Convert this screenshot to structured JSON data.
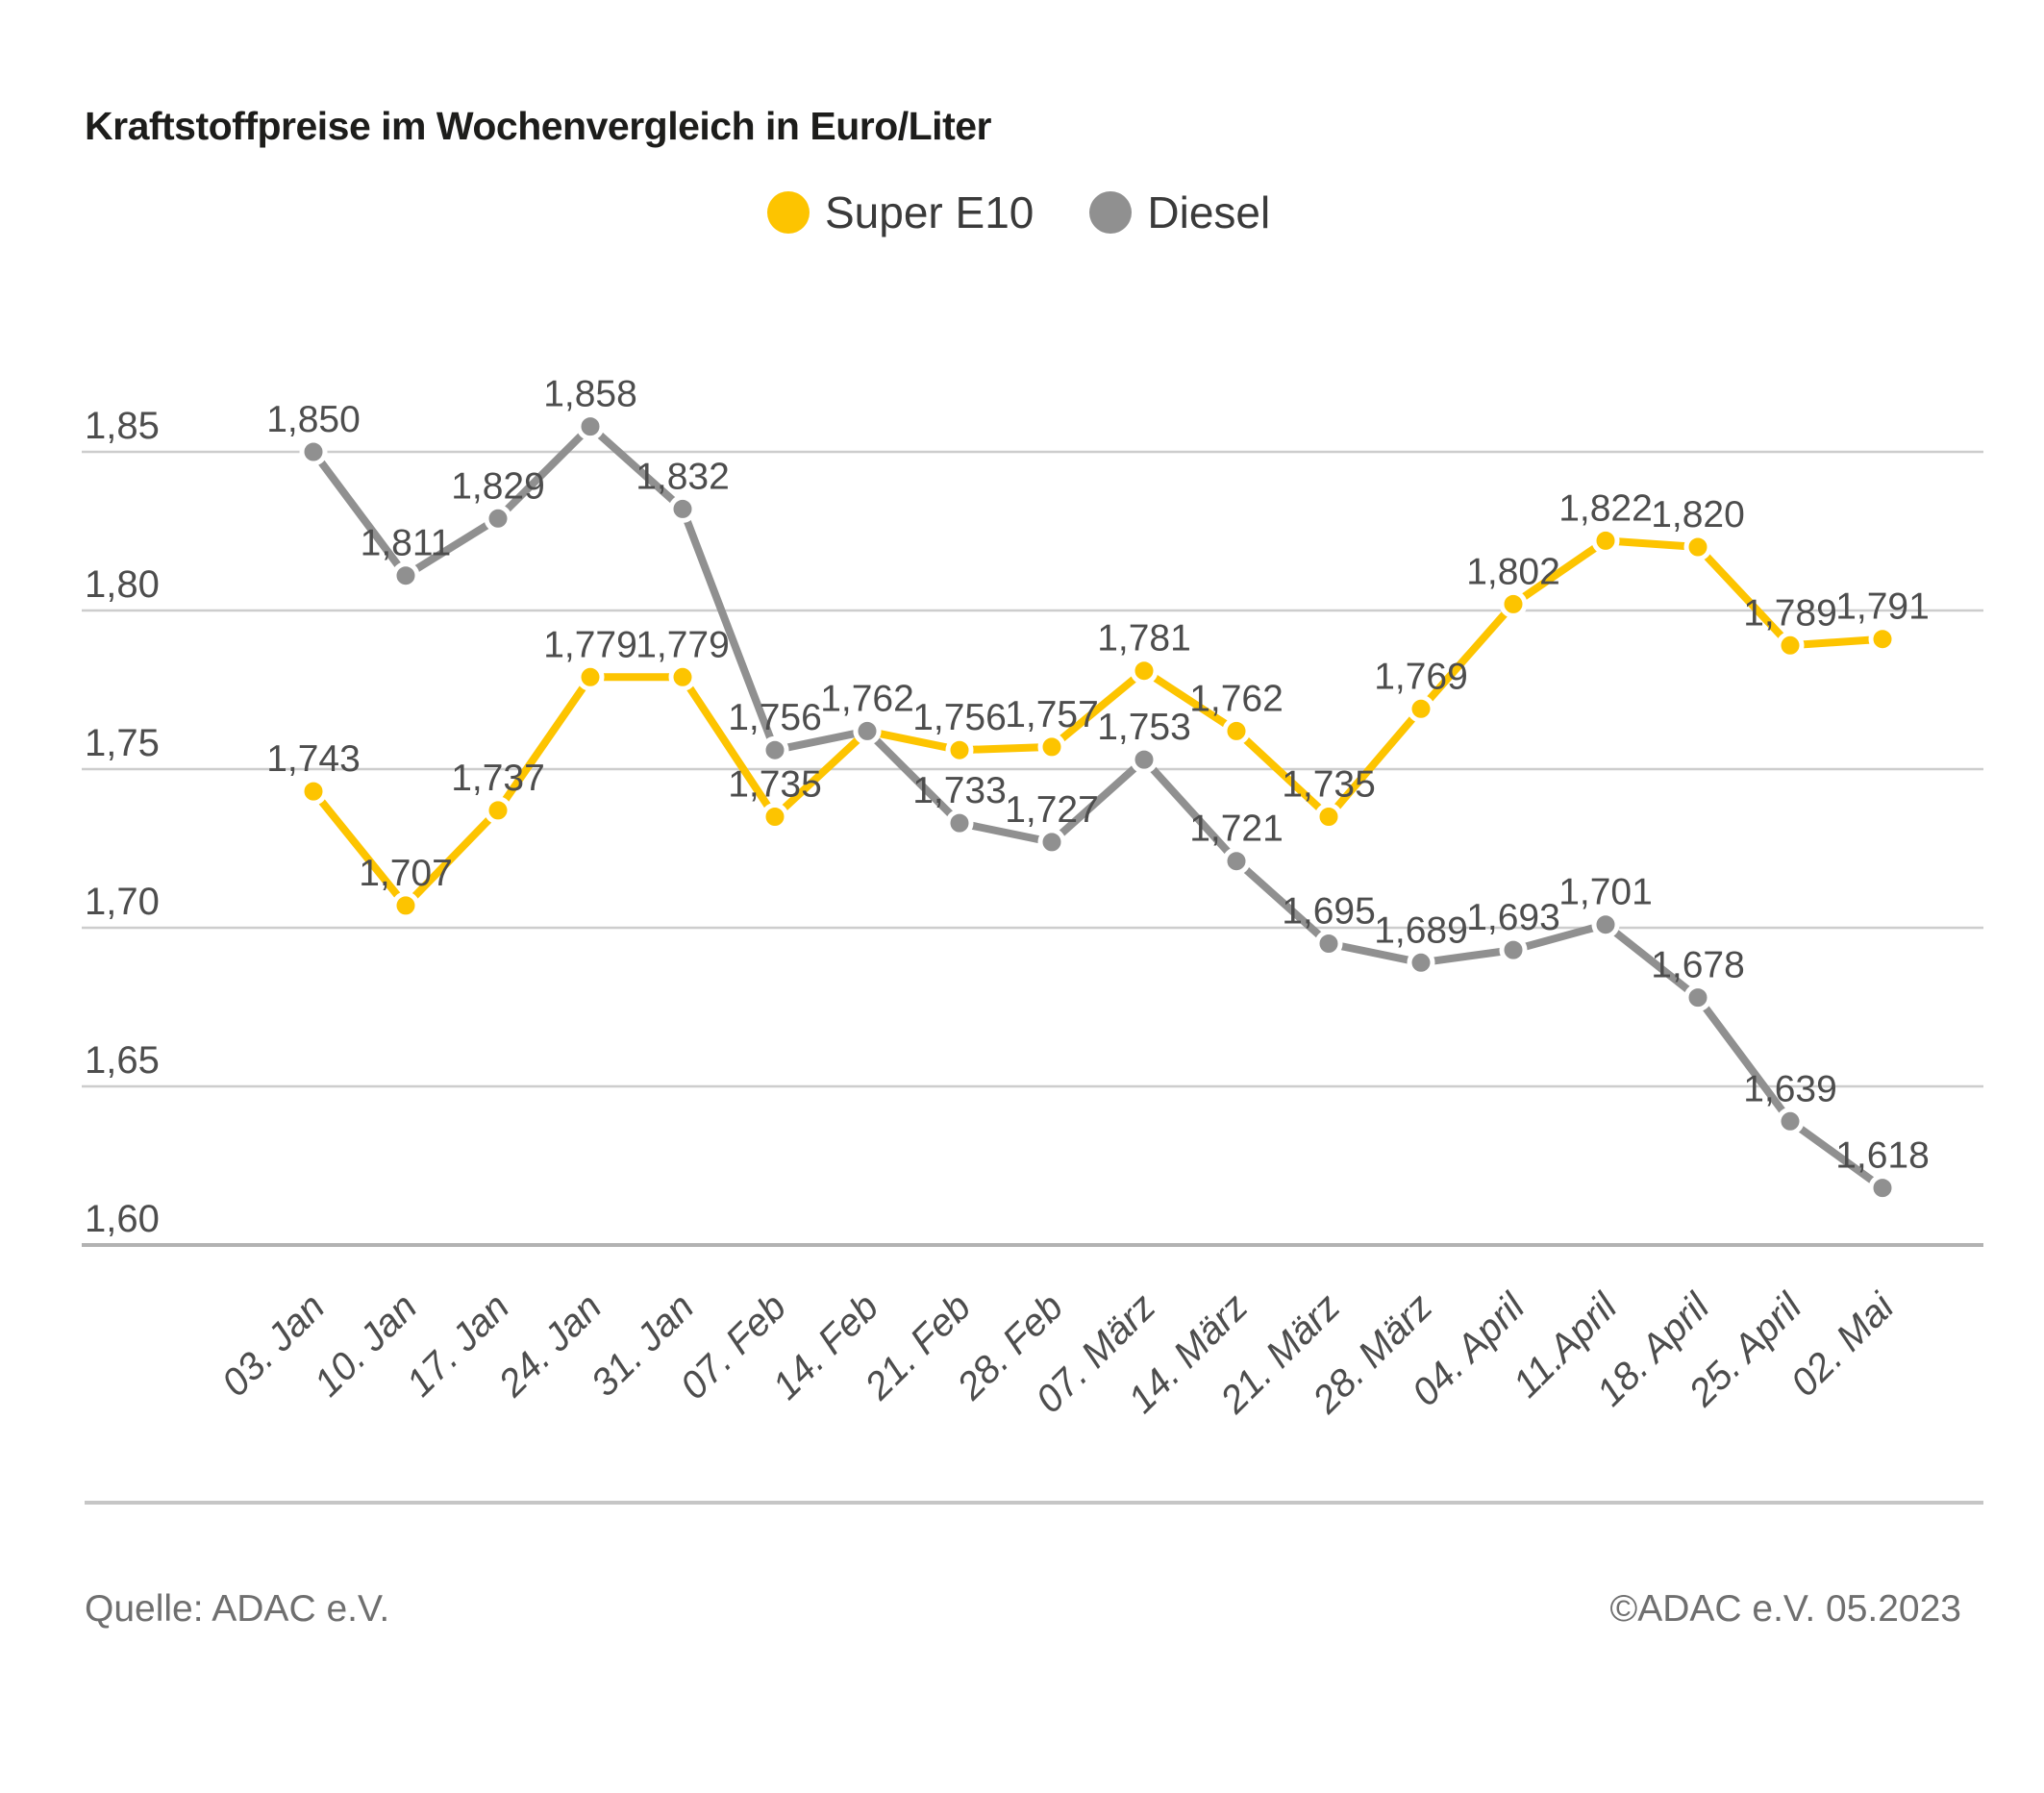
{
  "title": "Kraftstoffpreise im Wochenvergleich in Euro/Liter",
  "legend": [
    {
      "label": "Super E10",
      "color": "#fdc400"
    },
    {
      "label": "Diesel",
      "color": "#909090"
    }
  ],
  "footer": {
    "source": "Quelle: ADAC e.V.",
    "copyright": "©ADAC e.V. 05.2023"
  },
  "chart_data": {
    "type": "line",
    "title": "Kraftstoffpreise im Wochenvergleich in Euro/Liter",
    "categories": [
      "03. Jan",
      "10. Jan",
      "17. Jan",
      "24. Jan",
      "31. Jan",
      "07. Feb",
      "14. Feb",
      "21. Feb",
      "28. Feb",
      "07. März",
      "14. März",
      "21. März",
      "28. März",
      "04. April",
      "11.April",
      "18. April",
      "25. April",
      "02. Mai"
    ],
    "series": [
      {
        "name": "Super E10",
        "color": "#fdc400",
        "values": [
          1.743,
          1.707,
          1.737,
          1.779,
          1.779,
          1.735,
          1.762,
          1.756,
          1.757,
          1.781,
          1.762,
          1.735,
          1.769,
          1.802,
          1.822,
          1.82,
          1.789,
          1.791
        ]
      },
      {
        "name": "Diesel",
        "color": "#909090",
        "values": [
          1.85,
          1.811,
          1.829,
          1.858,
          1.832,
          1.756,
          1.762,
          1.733,
          1.727,
          1.753,
          1.721,
          1.695,
          1.689,
          1.693,
          1.701,
          1.678,
          1.639,
          1.618
        ]
      }
    ],
    "xlabel": "",
    "ylabel": "Euro/Liter",
    "y_ticks": [
      1.85,
      1.8,
      1.75,
      1.7,
      1.65,
      1.6
    ],
    "ylim": [
      1.58,
      1.87
    ],
    "grid": true,
    "legend_position": "top-center",
    "decimal_separator": ",",
    "colors": {
      "grid_line": "#cdcdcd",
      "axis_line": "#b2b2b2",
      "label_text": "#4d4d4d",
      "tick_text": "#4d4d4d"
    }
  }
}
